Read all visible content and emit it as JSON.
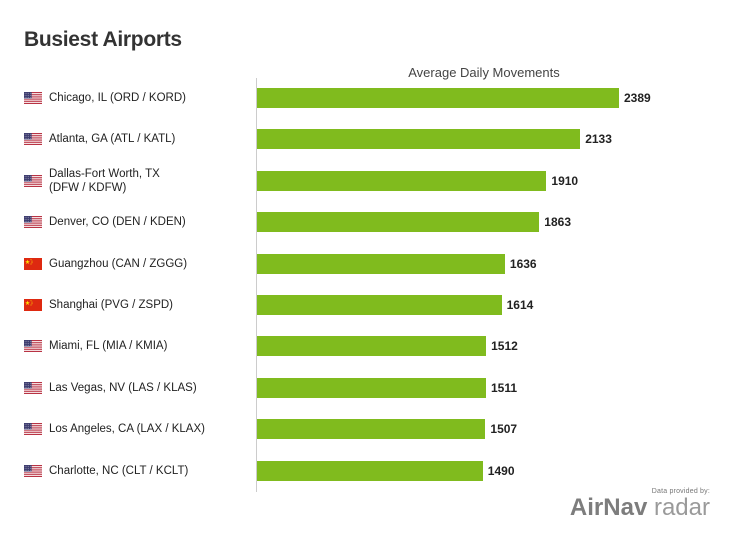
{
  "title": "Busiest Airports",
  "credit": {
    "note": "Data provided by:",
    "brand_primary": "AirNav",
    "brand_secondary": "radar"
  },
  "colors": {
    "bar": "#80bb1e"
  },
  "chart_data": {
    "type": "bar",
    "orientation": "horizontal",
    "xlabel": "Average Daily Movements",
    "xlim": [
      0,
      2500
    ],
    "grid": false,
    "categories": [
      {
        "label": "Chicago, IL (ORD / KORD)",
        "flag": "us-flag-icon"
      },
      {
        "label": "Atlanta, GA (ATL / KATL)",
        "flag": "us-flag-icon"
      },
      {
        "label": "Dallas-Fort Worth, TX\n(DFW / KDFW)",
        "flag": "us-flag-icon"
      },
      {
        "label": "Denver, CO (DEN / KDEN)",
        "flag": "us-flag-icon"
      },
      {
        "label": "Guangzhou (CAN / ZGGG)",
        "flag": "cn-flag-icon"
      },
      {
        "label": "Shanghai (PVG / ZSPD)",
        "flag": "cn-flag-icon"
      },
      {
        "label": "Miami, FL (MIA / KMIA)",
        "flag": "us-flag-icon"
      },
      {
        "label": "Las Vegas, NV (LAS / KLAS)",
        "flag": "us-flag-icon"
      },
      {
        "label": "Los Angeles, CA (LAX / KLAX)",
        "flag": "us-flag-icon"
      },
      {
        "label": "Charlotte, NC (CLT / KCLT)",
        "flag": "us-flag-icon"
      }
    ],
    "values": [
      2389,
      2133,
      1910,
      1863,
      1636,
      1614,
      1512,
      1511,
      1507,
      1490
    ]
  }
}
